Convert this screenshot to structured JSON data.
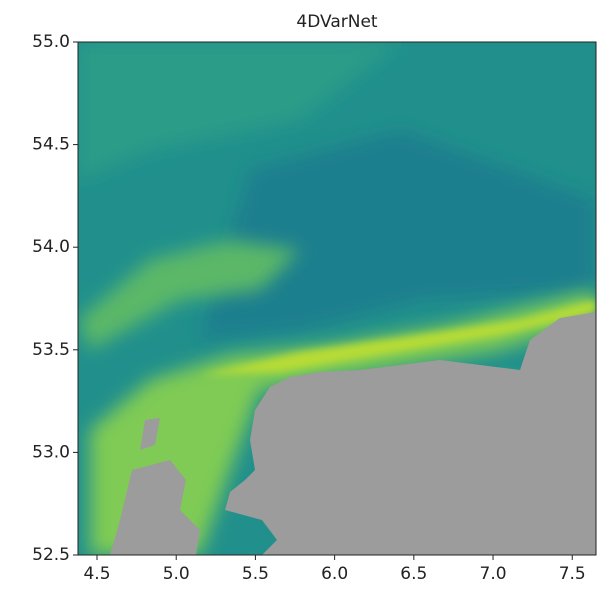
{
  "chart_data": {
    "type": "map",
    "title": "4DVarNet",
    "xlim": [
      4.38,
      7.65
    ],
    "ylim": [
      52.5,
      55.0
    ],
    "xticks": [
      4.5,
      {
        "value": 5,
        "label": "5.0"
      },
      5.5,
      {
        "value": 6,
        "label": "6.0"
      },
      6.5,
      {
        "value": 7,
        "label": "7.0"
      },
      7.5
    ],
    "yticks": [
      52.5,
      {
        "value": 53,
        "label": "53.0"
      },
      53.5,
      {
        "value": 54,
        "label": "54.0"
      },
      54.5,
      {
        "value": 55,
        "label": "55.0"
      }
    ]
  }
}
